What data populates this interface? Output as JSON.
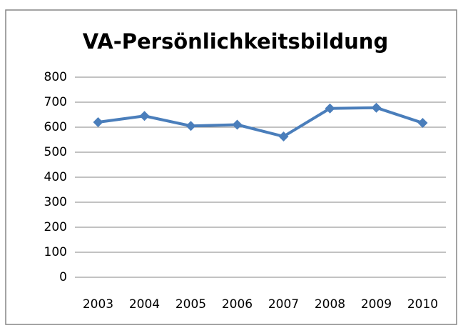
{
  "chart_data": {
    "type": "line",
    "title": "VA-Persönlichkeitsbildung",
    "categories": [
      "2003",
      "2004",
      "2005",
      "2006",
      "2007",
      "2008",
      "2009",
      "2010"
    ],
    "values": [
      620,
      645,
      605,
      610,
      563,
      675,
      678,
      617
    ],
    "color": "#4a7ebb",
    "ylim": [
      0,
      800
    ],
    "yticks": [
      0,
      100,
      200,
      300,
      400,
      500,
      600,
      700,
      800
    ],
    "grid": true
  }
}
